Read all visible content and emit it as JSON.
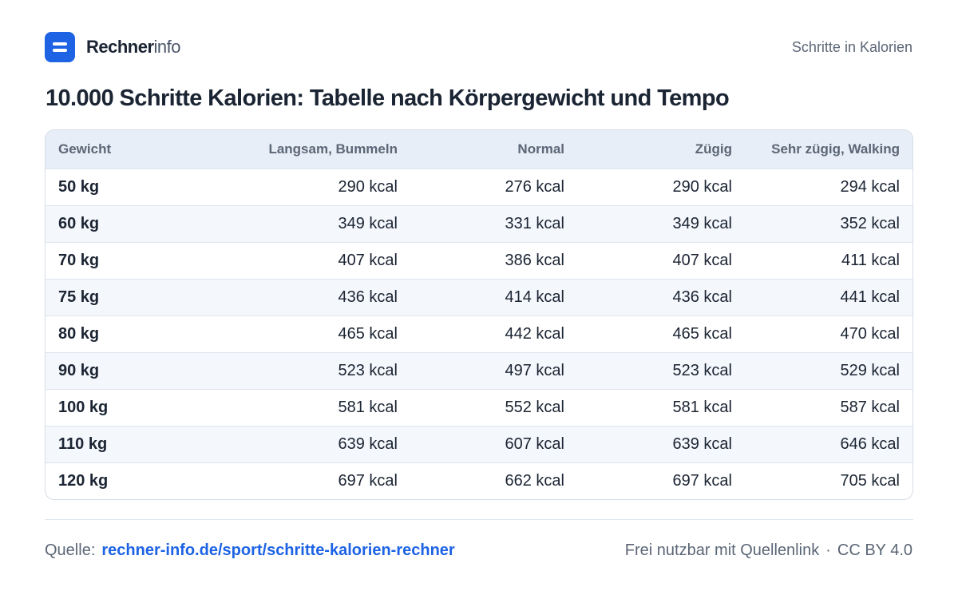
{
  "header": {
    "brand_strong": "Rechner",
    "brand_light": "info",
    "nav_label": "Schritte in Kalorien"
  },
  "title": "10.000 Schritte Kalorien: Tabelle nach Körpergewicht und Tempo",
  "table": {
    "headers": [
      "Gewicht",
      "Langsam, Bummeln",
      "Normal",
      "Zügig",
      "Sehr zügig, Walking"
    ],
    "rows": [
      [
        "50 kg",
        "290 kcal",
        "276 kcal",
        "290 kcal",
        "294 kcal"
      ],
      [
        "60 kg",
        "349 kcal",
        "331 kcal",
        "349 kcal",
        "352 kcal"
      ],
      [
        "70 kg",
        "407 kcal",
        "386 kcal",
        "407 kcal",
        "411 kcal"
      ],
      [
        "75 kg",
        "436 kcal",
        "414 kcal",
        "436 kcal",
        "441 kcal"
      ],
      [
        "80 kg",
        "465 kcal",
        "442 kcal",
        "465 kcal",
        "470 kcal"
      ],
      [
        "90 kg",
        "523 kcal",
        "497 kcal",
        "523 kcal",
        "529 kcal"
      ],
      [
        "100 kg",
        "581 kcal",
        "552 kcal",
        "581 kcal",
        "587 kcal"
      ],
      [
        "110 kg",
        "639 kcal",
        "607 kcal",
        "639 kcal",
        "646 kcal"
      ],
      [
        "120 kg",
        "697 kcal",
        "662 kcal",
        "697 kcal",
        "705 kcal"
      ]
    ]
  },
  "footer": {
    "source_label": "Quelle:",
    "source_link": "rechner-info.de/sport/schritte-kalorien-rechner",
    "license_text": "Frei nutzbar mit Quellenlink",
    "separator": "·",
    "license_code": "CC BY 4.0"
  },
  "colors": {
    "accent": "#1d63e4",
    "header_bg": "#e8eef7",
    "stripe_bg": "#f4f7fb"
  },
  "icons": {
    "logo": "rechnerinfo-logo-icon"
  }
}
